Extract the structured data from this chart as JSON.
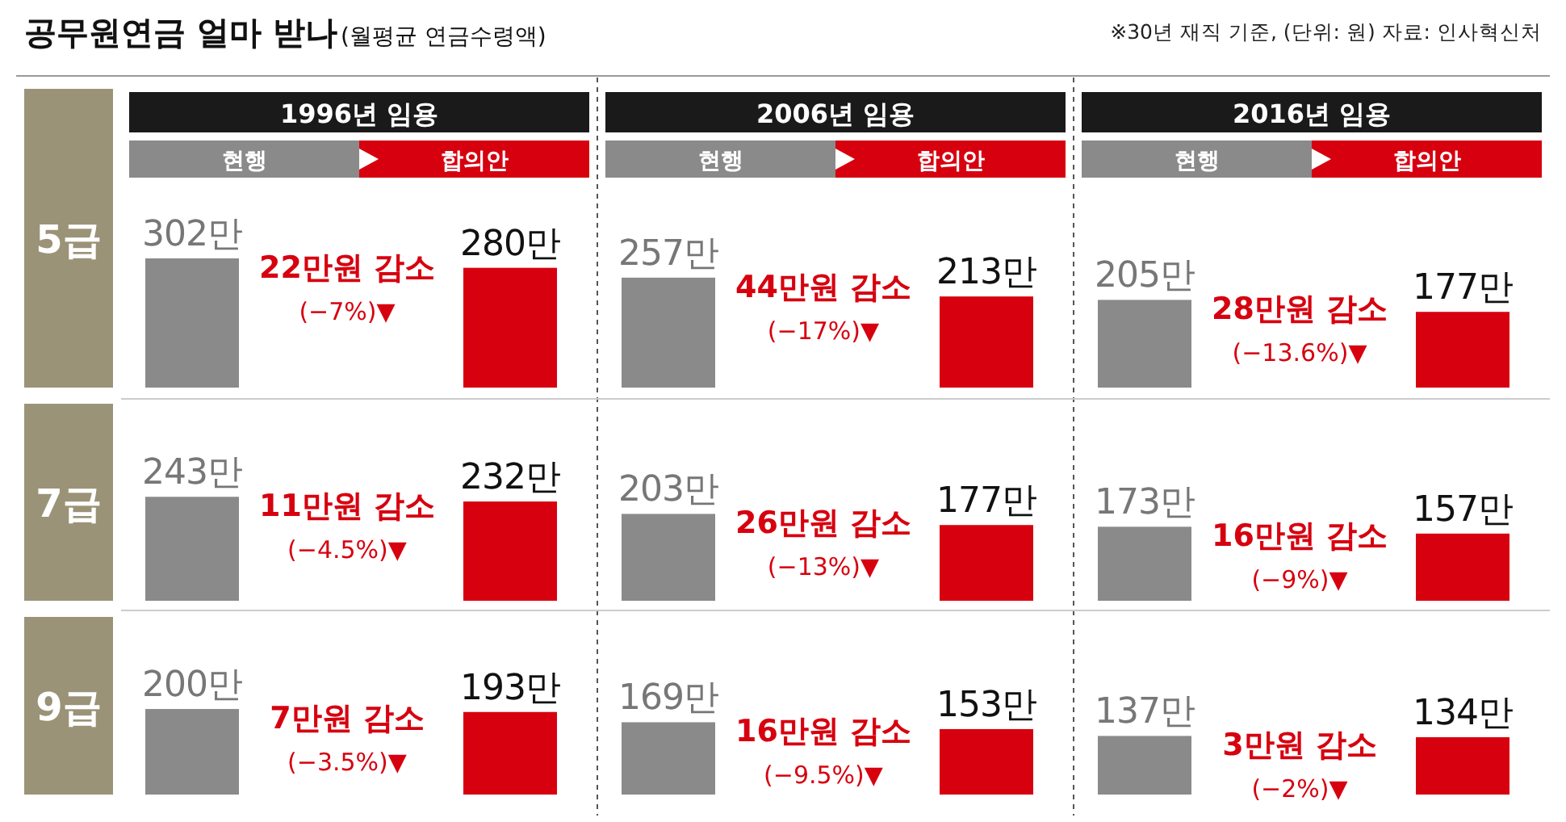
{
  "chart_data": [
    {
      "type": "other",
      "title": "공무원연금 얼마 받나",
      "subtitle": "(월평균 연금수령액)",
      "annotations": [
        "※30년 재직 기준, (단위: 원) 자료: 인사혁신처"
      ]
    },
    {
      "type": "bar",
      "title": "1996년 임용",
      "ylabel": "5급",
      "categories": [
        "현행",
        "합의안"
      ],
      "values": [
        302,
        280
      ],
      "value_labels": [
        "302만",
        "280만"
      ],
      "colors": [
        "#8a8a8a",
        "#d7000f"
      ],
      "annotations": [
        "22만원 감소",
        "(−7%)▼"
      ]
    },
    {
      "type": "bar",
      "title": "2006년 임용",
      "categories": [
        "현행",
        "합의안"
      ],
      "values": [
        257,
        213
      ],
      "value_labels": [
        "257만",
        "213만"
      ],
      "colors": [
        "#8a8a8a",
        "#d7000f"
      ],
      "annotations": [
        "44만원 감소",
        "(−17%)▼"
      ]
    },
    {
      "type": "bar",
      "title": "2016년 임용",
      "categories": [
        "현행",
        "합의안"
      ],
      "values": [
        205,
        177
      ],
      "value_labels": [
        "205만",
        "177만"
      ],
      "colors": [
        "#8a8a8a",
        "#d7000f"
      ],
      "annotations": [
        "28만원 감소",
        "(−13.6%)▼"
      ]
    },
    {
      "type": "bar",
      "ylabel": "7급",
      "categories": [
        null,
        null
      ],
      "values": [
        243,
        232
      ],
      "value_labels": [
        "243만",
        "232만"
      ],
      "colors": [
        "#8a8a8a",
        "#d7000f"
      ],
      "annotations": [
        "11만원 감소",
        "(−4.5%)▼"
      ]
    },
    {
      "type": "bar",
      "categories": [
        null,
        null
      ],
      "values": [
        203,
        177
      ],
      "value_labels": [
        "203만",
        "177만"
      ],
      "colors": [
        "#8a8a8a",
        "#d7000f"
      ],
      "annotations": [
        "26만원 감소",
        "(−13%)▼"
      ]
    },
    {
      "type": "bar",
      "categories": [
        null,
        null
      ],
      "values": [
        173,
        157
      ],
      "value_labels": [
        "173만",
        "157만"
      ],
      "colors": [
        "#8a8a8a",
        "#d7000f"
      ],
      "annotations": [
        "16만원 감소",
        "(−9%)▼"
      ]
    },
    {
      "type": "bar",
      "ylabel": "9급",
      "categories": [
        null,
        null
      ],
      "values": [
        200,
        193
      ],
      "value_labels": [
        "200만",
        "193만"
      ],
      "colors": [
        "#8a8a8a",
        "#d7000f"
      ],
      "annotations": [
        "7만원 감소",
        "(−3.5%)▼"
      ]
    },
    {
      "type": "bar",
      "categories": [
        null,
        null
      ],
      "values": [
        169,
        153
      ],
      "value_labels": [
        "169만",
        "153만"
      ],
      "colors": [
        "#8a8a8a",
        "#d7000f"
      ],
      "annotations": [
        "16만원 감소",
        "(−9.5%)▼"
      ]
    },
    {
      "type": "bar",
      "categories": [
        null,
        null
      ],
      "values": [
        137,
        134
      ],
      "value_labels": [
        "137만",
        "134만"
      ],
      "colors": [
        "#8a8a8a",
        "#d7000f"
      ],
      "annotations": [
        "3만원 감소",
        "(−2%)▼"
      ]
    }
  ]
}
